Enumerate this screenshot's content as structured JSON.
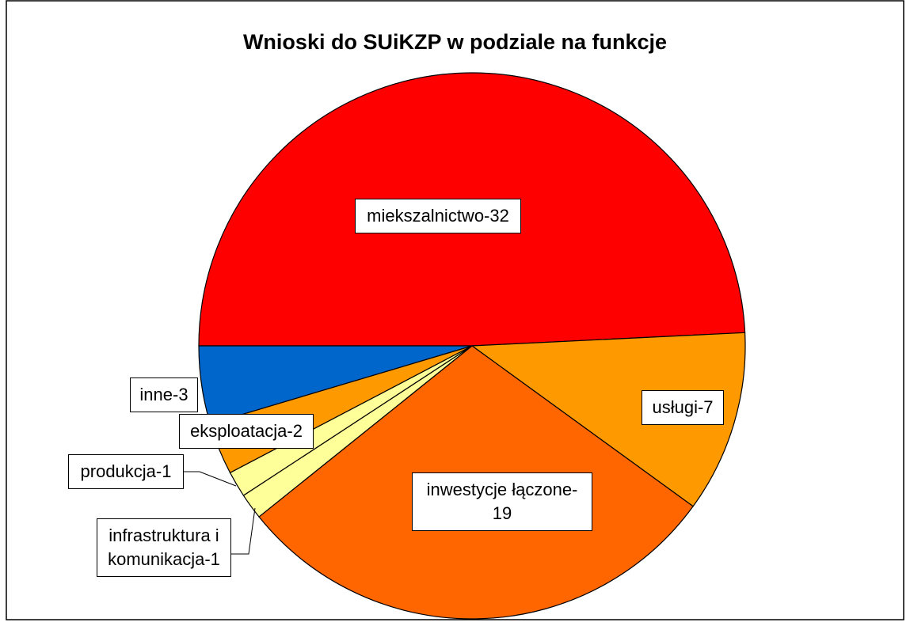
{
  "chart_data": {
    "type": "pie",
    "title": "Wnioski do SUiKZP w podziale na funkcje",
    "categories": [
      "miekszalnictwo-32",
      "usługi-7",
      "inwestycje łączone-19",
      "infrastruktura i komunikacja-1",
      "produkcja-1",
      "eksploatacja-2",
      "inne-3"
    ],
    "values": [
      32,
      7,
      19,
      1,
      1,
      2,
      3
    ],
    "colors": [
      "#ff0000",
      "#ff9900",
      "#ff6600",
      "#ffff99",
      "#ffff99",
      "#ff9900",
      "#0066cc"
    ]
  }
}
